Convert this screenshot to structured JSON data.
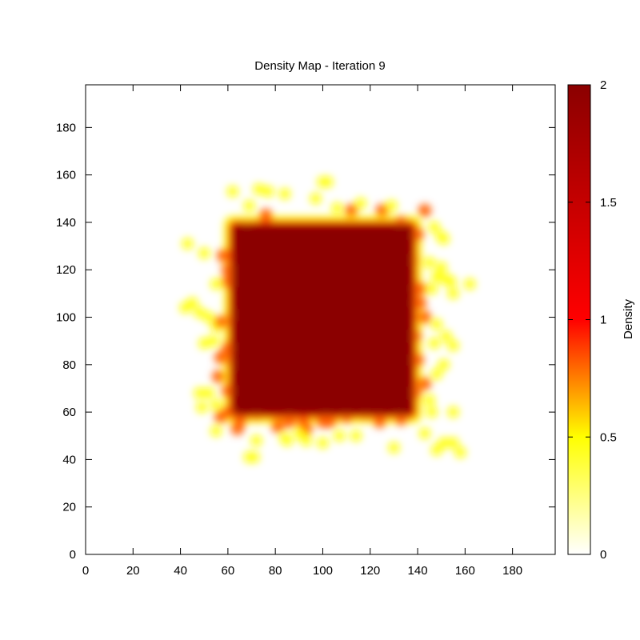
{
  "chart_data": {
    "type": "heatmap",
    "title": "Density Map - Iteration 9",
    "colorbar_label": "Density",
    "xlim": [
      0,
      198
    ],
    "ylim": [
      0,
      198
    ],
    "x_ticks": [
      0,
      20,
      40,
      60,
      80,
      100,
      120,
      140,
      160,
      180
    ],
    "y_ticks": [
      0,
      20,
      40,
      60,
      80,
      100,
      120,
      140,
      160,
      180
    ],
    "color_range": [
      0,
      2
    ],
    "colorbar_ticks": [
      {
        "value": 0,
        "label": "0"
      },
      {
        "value": 0.5,
        "label": "0.5"
      },
      {
        "value": 1,
        "label": "1"
      },
      {
        "value": 1.5,
        "label": "1.5"
      },
      {
        "value": 2,
        "label": "2"
      }
    ],
    "colormap": [
      "#ffffff",
      "#ffff00",
      "#ff0000",
      "#8b0000"
    ],
    "grid": false,
    "dense_region": {
      "x_range": [
        61,
        139
      ],
      "y_range": [
        58,
        140
      ],
      "value": 2
    },
    "scattered_points": [
      [
        62,
        153
      ],
      [
        73,
        154
      ],
      [
        77,
        153
      ],
      [
        84,
        152
      ],
      [
        69,
        147
      ],
      [
        76,
        143
      ],
      [
        68,
        138
      ],
      [
        100,
        157
      ],
      [
        102,
        157
      ],
      [
        97,
        150
      ],
      [
        106,
        146
      ],
      [
        116,
        148
      ],
      [
        112,
        145
      ],
      [
        125,
        145
      ],
      [
        129,
        147
      ],
      [
        133,
        140
      ],
      [
        143,
        145
      ],
      [
        147,
        138
      ],
      [
        150,
        134
      ],
      [
        151,
        133
      ],
      [
        43,
        131
      ],
      [
        50,
        127
      ],
      [
        58,
        126
      ],
      [
        60,
        120
      ],
      [
        55,
        114
      ],
      [
        60,
        115
      ],
      [
        42,
        104
      ],
      [
        45,
        106
      ],
      [
        48,
        102
      ],
      [
        52,
        100
      ],
      [
        55,
        96
      ],
      [
        50,
        89
      ],
      [
        54,
        90
      ],
      [
        57,
        83
      ],
      [
        48,
        68
      ],
      [
        52,
        68
      ],
      [
        55,
        63
      ],
      [
        49,
        62
      ],
      [
        57,
        58
      ],
      [
        55,
        52
      ],
      [
        60,
        60
      ],
      [
        65,
        56
      ],
      [
        72,
        59
      ],
      [
        81,
        54
      ],
      [
        86,
        56
      ],
      [
        92,
        55
      ],
      [
        93,
        53
      ],
      [
        100,
        56
      ],
      [
        103,
        56
      ],
      [
        110,
        58
      ],
      [
        118,
        59
      ],
      [
        124,
        56
      ],
      [
        131,
        60
      ],
      [
        133,
        57
      ],
      [
        64,
        53
      ],
      [
        72,
        48
      ],
      [
        85,
        48
      ],
      [
        90,
        51
      ],
      [
        93,
        48
      ],
      [
        100,
        47
      ],
      [
        107,
        50
      ],
      [
        114,
        50
      ],
      [
        130,
        45
      ],
      [
        69,
        41
      ],
      [
        71,
        41
      ],
      [
        84,
        49
      ],
      [
        143,
        51
      ],
      [
        146,
        60
      ],
      [
        148,
        44
      ],
      [
        151,
        47
      ],
      [
        155,
        47
      ],
      [
        155,
        60
      ],
      [
        158,
        43
      ],
      [
        141,
        112
      ],
      [
        146,
        112
      ],
      [
        148,
        117
      ],
      [
        152,
        116
      ],
      [
        155,
        110
      ],
      [
        154,
        115
      ],
      [
        162,
        114
      ],
      [
        145,
        123
      ],
      [
        150,
        121
      ],
      [
        141,
        106
      ],
      [
        143,
        100
      ],
      [
        148,
        97
      ],
      [
        147,
        89
      ],
      [
        152,
        92
      ],
      [
        155,
        88
      ],
      [
        151,
        80
      ],
      [
        148,
        76
      ],
      [
        143,
        72
      ],
      [
        145,
        65
      ],
      [
        62,
        101
      ],
      [
        57,
        98
      ],
      [
        60,
        87
      ],
      [
        62,
        80
      ],
      [
        56,
        75
      ],
      [
        60,
        69
      ],
      [
        139,
        92
      ],
      [
        140,
        82
      ],
      [
        139,
        68
      ],
      [
        138,
        124
      ],
      [
        140,
        135
      ],
      [
        64,
        126
      ],
      [
        64,
        108
      ]
    ]
  }
}
